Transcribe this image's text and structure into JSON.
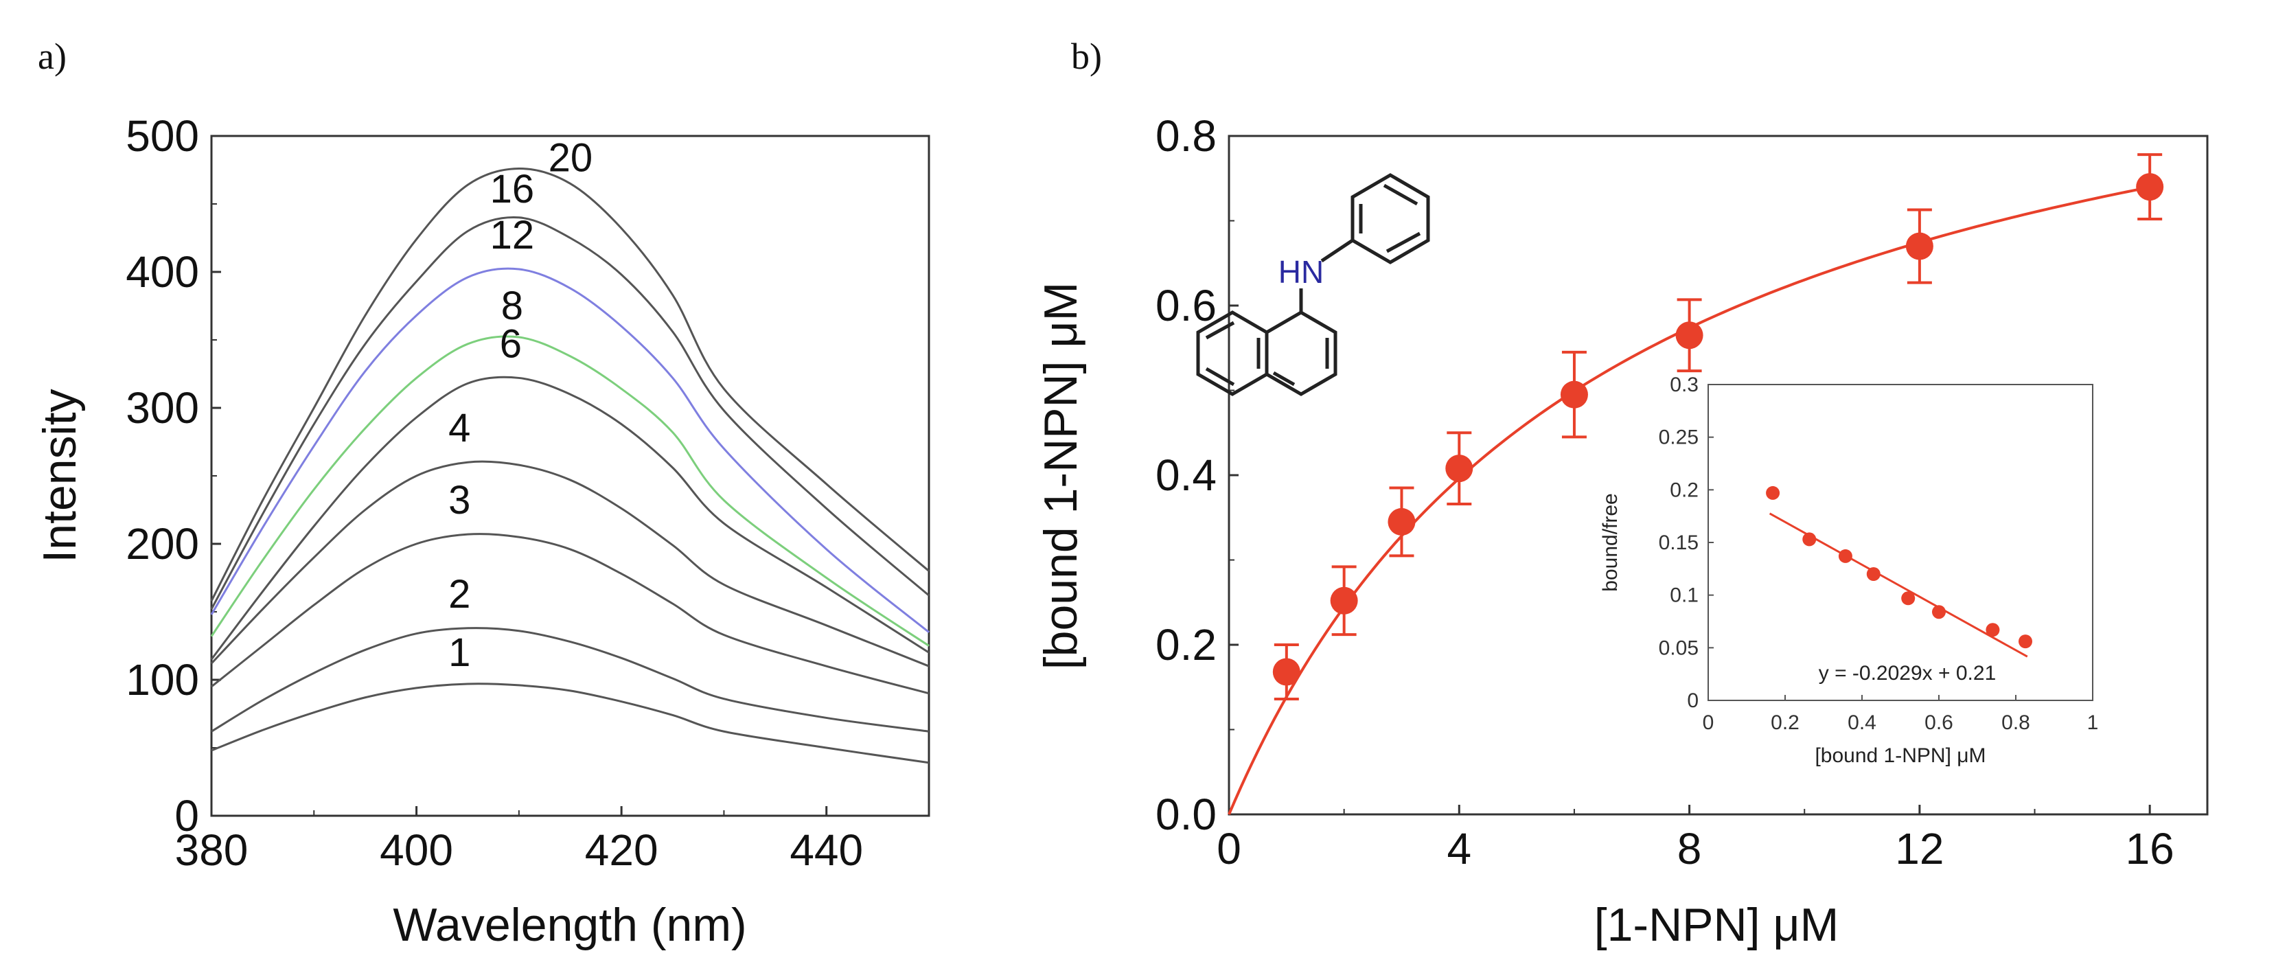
{
  "chart_data": [
    {
      "panel_label": "a)",
      "type": "line",
      "xlabel": "Wavelength (nm)",
      "ylabel": "Intensity",
      "xlim": [
        380,
        450
      ],
      "ylim": [
        0,
        500
      ],
      "xticks": [
        "380",
        "400",
        "420",
        "440"
      ],
      "yticks": [
        "0",
        "100",
        "200",
        "300",
        "400",
        "500"
      ],
      "series": [
        {
          "name": "1",
          "values": [
            48,
            63,
            76,
            87,
            94,
            97,
            96,
            92,
            84,
            74,
            62,
            50,
            39
          ],
          "color": "#555555"
        },
        {
          "name": "2",
          "values": [
            62,
            85,
            105,
            122,
            134,
            138,
            136,
            128,
            116,
            101,
            86,
            72,
            62
          ],
          "color": "#555555"
        },
        {
          "name": "3",
          "values": [
            95,
            125,
            155,
            182,
            200,
            207,
            205,
            196,
            178,
            156,
            133,
            110,
            90
          ],
          "color": "#555555"
        },
        {
          "name": "4",
          "values": [
            112,
            152,
            190,
            225,
            250,
            260,
            258,
            247,
            226,
            199,
            170,
            140,
            110
          ],
          "color": "#555555"
        },
        {
          "name": "6",
          "values": [
            115,
            165,
            213,
            257,
            293,
            318,
            322,
            310,
            288,
            256,
            215,
            168,
            120
          ],
          "color": "#555555"
        },
        {
          "name": "8",
          "values": [
            132,
            188,
            240,
            285,
            322,
            347,
            352,
            338,
            314,
            282,
            232,
            175,
            125
          ],
          "color": "#7ccf7c"
        },
        {
          "name": "12",
          "values": [
            148,
            212,
            272,
            327,
            368,
            396,
            402,
            388,
            360,
            322,
            270,
            196,
            135
          ],
          "color": "#7f7fe0"
        },
        {
          "name": "16",
          "values": [
            152,
            222,
            288,
            347,
            393,
            430,
            440,
            425,
            398,
            356,
            298,
            226,
            162
          ],
          "color": "#555555"
        },
        {
          "name": "20",
          "values": [
            158,
            232,
            300,
            368,
            424,
            464,
            476,
            465,
            432,
            383,
            314,
            244,
            180
          ],
          "color": "#555555"
        }
      ],
      "x": [
        380,
        385,
        390,
        395,
        400,
        405,
        410,
        415,
        420,
        425,
        430,
        440,
        450
      ],
      "curve_labels": [
        "20",
        "16",
        "12",
        "8",
        "6",
        "4",
        "3",
        "2",
        "1"
      ]
    },
    {
      "panel_label": "b)",
      "type": "scatter",
      "xlabel": "[1-NPN] μM",
      "ylabel": "[bound 1-NPN] μM",
      "xlim": [
        0,
        17
      ],
      "ylim": [
        0,
        0.8
      ],
      "xticks": [
        "0",
        "4",
        "8",
        "12",
        "16"
      ],
      "yticks": [
        "0.0",
        "0.2",
        "0.4",
        "0.6",
        "0.8"
      ],
      "points": [
        {
          "x": 1,
          "y": 0.168,
          "err": 0.032
        },
        {
          "x": 2,
          "y": 0.252,
          "err": 0.04
        },
        {
          "x": 3,
          "y": 0.345,
          "err": 0.04
        },
        {
          "x": 4,
          "y": 0.408,
          "err": 0.042
        },
        {
          "x": 6,
          "y": 0.495,
          "err": 0.05
        },
        {
          "x": 8,
          "y": 0.565,
          "err": 0.042
        },
        {
          "x": 12,
          "y": 0.67,
          "err": 0.043
        },
        {
          "x": 16,
          "y": 0.74,
          "err": 0.038
        }
      ],
      "fit": {
        "model": "Bmax*x/(Kd+x)",
        "Bmax": 1.04,
        "Kd": 6.5,
        "color": "#e8402a"
      },
      "molecule": {
        "heteroatom_label": "HN"
      },
      "inset": {
        "type": "scatter",
        "xlabel": "[bound 1-NPN] μM",
        "ylabel": "bound/free",
        "xlim": [
          0,
          1
        ],
        "ylim": [
          0,
          0.3
        ],
        "xticks": [
          "0",
          "0.2",
          "0.4",
          "0.6",
          "0.8",
          "1"
        ],
        "yticks": [
          "0",
          "0.05",
          "0.1",
          "0.15",
          "0.2",
          "0.25",
          "0.3"
        ],
        "points": [
          {
            "x": 0.168,
            "y": 0.197
          },
          {
            "x": 0.263,
            "y": 0.153
          },
          {
            "x": 0.357,
            "y": 0.137
          },
          {
            "x": 0.43,
            "y": 0.12
          },
          {
            "x": 0.52,
            "y": 0.097
          },
          {
            "x": 0.6,
            "y": 0.084
          },
          {
            "x": 0.74,
            "y": 0.067
          },
          {
            "x": 0.825,
            "y": 0.056
          }
        ],
        "fit": {
          "slope": -0.2029,
          "intercept": 0.21
        },
        "equation": "y = -0.2029x + 0.21"
      }
    }
  ]
}
